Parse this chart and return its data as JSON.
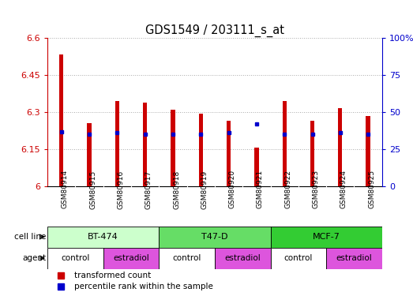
{
  "title": "GDS1549 / 203111_s_at",
  "samples": [
    "GSM80914",
    "GSM80915",
    "GSM80916",
    "GSM80917",
    "GSM80918",
    "GSM80919",
    "GSM80920",
    "GSM80921",
    "GSM80922",
    "GSM80923",
    "GSM80924",
    "GSM80925"
  ],
  "bar_tops": [
    6.535,
    6.255,
    6.345,
    6.34,
    6.31,
    6.295,
    6.265,
    6.155,
    6.345,
    6.265,
    6.315,
    6.285
  ],
  "bar_bottoms": [
    6.0,
    6.0,
    6.0,
    6.0,
    6.0,
    6.0,
    6.0,
    6.0,
    6.0,
    6.0,
    6.0,
    6.0
  ],
  "blue_markers_pct": [
    37,
    35,
    36,
    35,
    35,
    35,
    36,
    42,
    35,
    35,
    36,
    35
  ],
  "ylim": [
    6.0,
    6.6
  ],
  "yticks": [
    6.0,
    6.15,
    6.3,
    6.45,
    6.6
  ],
  "ytick_labels": [
    "6",
    "6.15",
    "6.3",
    "6.45",
    "6.6"
  ],
  "y2ticks": [
    0,
    25,
    50,
    75,
    100
  ],
  "y2tick_labels": [
    "0",
    "25",
    "50",
    "75",
    "100%"
  ],
  "bar_color": "#cc0000",
  "blue_color": "#0000cc",
  "cell_line_groups": [
    {
      "label": "BT-474",
      "start": 0,
      "end": 3,
      "color": "#ccffcc"
    },
    {
      "label": "T47-D",
      "start": 4,
      "end": 7,
      "color": "#66dd66"
    },
    {
      "label": "MCF-7",
      "start": 8,
      "end": 11,
      "color": "#33cc33"
    }
  ],
  "agent_groups": [
    {
      "label": "control",
      "start": 0,
      "end": 1,
      "color": "#ffffff"
    },
    {
      "label": "estradiol",
      "start": 2,
      "end": 3,
      "color": "#dd55dd"
    },
    {
      "label": "control",
      "start": 4,
      "end": 5,
      "color": "#ffffff"
    },
    {
      "label": "estradiol",
      "start": 6,
      "end": 7,
      "color": "#dd55dd"
    },
    {
      "label": "control",
      "start": 8,
      "end": 9,
      "color": "#ffffff"
    },
    {
      "label": "estradiol",
      "start": 10,
      "end": 11,
      "color": "#dd55dd"
    }
  ],
  "legend_items": [
    {
      "label": "transformed count",
      "color": "#cc0000"
    },
    {
      "label": "percentile rank within the sample",
      "color": "#0000cc"
    }
  ],
  "background_color": "#ffffff",
  "grid_color": "#aaaaaa",
  "tick_color_left": "#cc0000",
  "tick_color_right": "#0000cc",
  "bar_width": 0.15,
  "xtick_label_area_color": "#dddddd"
}
